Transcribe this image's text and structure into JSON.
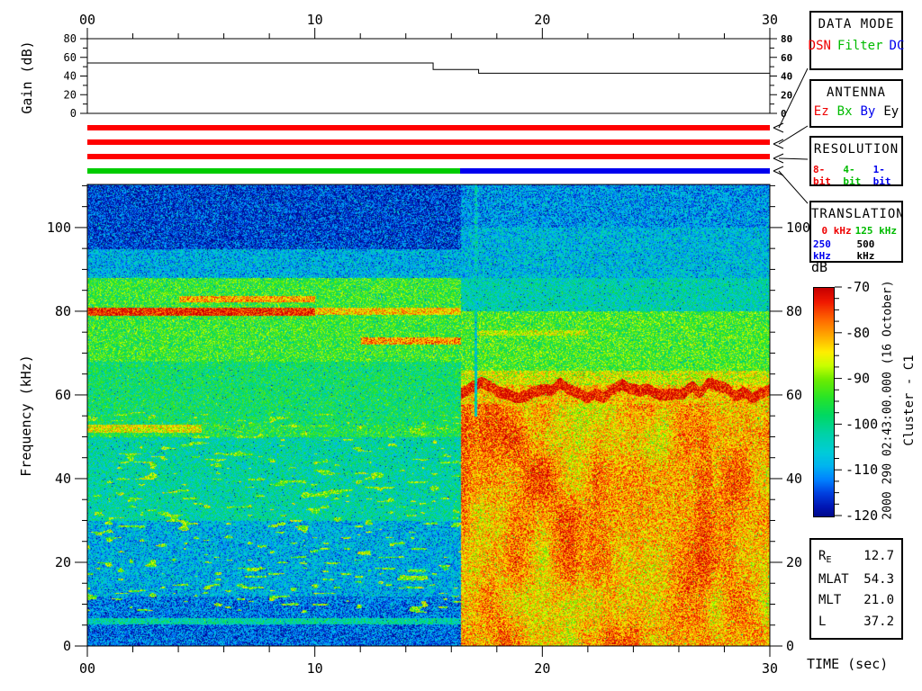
{
  "axis_labels": {
    "time": "TIME (sec)",
    "frequency": "Frequency (kHz)",
    "gain": "Gain (dB)",
    "colorbar": "dB"
  },
  "side_annotations": {
    "datetime_vertical": "2000 290 02:43:00.000 (16 October)",
    "spacecraft_vertical": "Cluster - C1"
  },
  "panels": {
    "data_mode": {
      "title": "DATA MODE",
      "options": [
        {
          "label": "DSN",
          "color": "#ee0000"
        },
        {
          "label": "Filter",
          "color": "#00bb00"
        },
        {
          "label": "DC",
          "color": "#0000ee"
        }
      ]
    },
    "antenna": {
      "title": "ANTENNA",
      "options": [
        {
          "label": "Ez",
          "color": "#ee0000"
        },
        {
          "label": "Bx",
          "color": "#00bb00"
        },
        {
          "label": "By",
          "color": "#0000ee"
        },
        {
          "label": "Ey",
          "color": "#000000"
        }
      ]
    },
    "resolution": {
      "title": "RESOLUTION",
      "options": [
        {
          "label": "8-bit",
          "color": "#ee0000"
        },
        {
          "label": "4-bit",
          "color": "#00bb00"
        },
        {
          "label": "1-bit",
          "color": "#0000ee"
        }
      ]
    },
    "translation": {
      "title": "TRANSLATION",
      "options_row1": [
        {
          "label": "0 kHz",
          "color": "#ee0000"
        },
        {
          "label": "125 kHz",
          "color": "#00bb00"
        }
      ],
      "options_row2": [
        {
          "label": "250 kHz",
          "color": "#0000ee"
        },
        {
          "label": "500 kHz",
          "color": "#000000"
        }
      ]
    }
  },
  "ephemeris": {
    "rows": [
      {
        "label": "R",
        "sub": "E",
        "value": "12.7"
      },
      {
        "label": "MLAT",
        "sub": "",
        "value": "54.3"
      },
      {
        "label": "MLT",
        "sub": "",
        "value": "21.0"
      },
      {
        "label": "L",
        "sub": "",
        "value": "37.2"
      }
    ]
  },
  "chart_data": [
    {
      "id": "gain_plot",
      "type": "line",
      "ylabel": "Gain (dB)",
      "xlim": [
        0,
        30
      ],
      "ylim": [
        0,
        80
      ],
      "yticks": [
        0,
        20,
        40,
        60,
        80
      ],
      "y_minor_step": 10,
      "xticks": [
        0,
        10,
        20,
        30
      ],
      "xtick_labels": [
        "00",
        "10",
        "20",
        "30"
      ],
      "x_minor_step": 2,
      "series": [
        {
          "name": "receiver-gain",
          "points": [
            [
              0,
              54
            ],
            [
              15.2,
              54
            ],
            [
              15.2,
              47
            ],
            [
              17.2,
              47
            ],
            [
              17.2,
              43
            ],
            [
              30,
              43
            ]
          ]
        }
      ]
    },
    {
      "id": "status_bars",
      "type": "timeline",
      "xlim": [
        0,
        30
      ],
      "rows": [
        {
          "name": "data-mode-bar",
          "segments": [
            {
              "from": 0,
              "to": 30,
              "value": "DSN",
              "color": "#ff0000"
            }
          ]
        },
        {
          "name": "antenna-bar",
          "segments": [
            {
              "from": 0,
              "to": 30,
              "value": "Ez",
              "color": "#ff0000"
            }
          ]
        },
        {
          "name": "resolution-bar",
          "segments": [
            {
              "from": 0,
              "to": 30,
              "value": "8-bit",
              "color": "#ff0000"
            }
          ]
        },
        {
          "name": "translation-bar",
          "segments": [
            {
              "from": 0,
              "to": 16.4,
              "value": "125 kHz",
              "color": "#00cc00"
            },
            {
              "from": 16.4,
              "to": 30,
              "value": "250 kHz",
              "color": "#0000ee"
            }
          ]
        }
      ]
    },
    {
      "id": "spectrogram",
      "type": "heatmap",
      "xlabel": "TIME (sec)",
      "ylabel": "Frequency (kHz)",
      "xlim": [
        0,
        30
      ],
      "ylim": [
        0,
        110.3
      ],
      "xticks": [
        0,
        10,
        20,
        30
      ],
      "xtick_labels": [
        "00",
        "10",
        "20",
        "30"
      ],
      "x_minor_step": 2,
      "yticks": [
        0,
        20,
        40,
        60,
        80,
        100
      ],
      "y_minor_step": 5,
      "colorbar": {
        "label": "dB",
        "min": -120,
        "max": -70,
        "ticks": [
          -70,
          -80,
          -90,
          -100,
          -110,
          -120
        ],
        "minor_step": 2.5,
        "stops": [
          [
            -70,
            "#c80000"
          ],
          [
            -73,
            "#f01800"
          ],
          [
            -77,
            "#ff6a00"
          ],
          [
            -81,
            "#ffb400"
          ],
          [
            -84,
            "#ffee00"
          ],
          [
            -87,
            "#c8ff00"
          ],
          [
            -90,
            "#6eec00"
          ],
          [
            -94,
            "#28e428"
          ],
          [
            -98,
            "#00d864"
          ],
          [
            -102,
            "#00d2a8"
          ],
          [
            -106,
            "#00ccd8"
          ],
          [
            -109,
            "#00b4f0"
          ],
          [
            -112,
            "#0082ff"
          ],
          [
            -115,
            "#0040e0"
          ],
          [
            -118,
            "#0016b4"
          ],
          [
            -120,
            "#000a8c"
          ]
        ]
      },
      "segments": [
        {
          "name": "mode-125khz",
          "t": [
            0,
            16.4
          ],
          "bands": [
            {
              "f": [
                95,
                110.3
              ],
              "level_db": -116
            },
            {
              "f": [
                88,
                95
              ],
              "level_db": -108
            },
            {
              "f": [
                68,
                88
              ],
              "level_db": -94
            },
            {
              "f": [
                53,
                68
              ],
              "level_db": -98
            },
            {
              "f": [
                50,
                53
              ],
              "level_db": -96
            },
            {
              "f": [
                30,
                50
              ],
              "level_db": -102
            },
            {
              "f": [
                12,
                30
              ],
              "level_db": -108
            },
            {
              "f": [
                6.5,
                12
              ],
              "level_db": -112
            },
            {
              "f": [
                0,
                6.5
              ],
              "level_db": -113
            }
          ],
          "lines": [
            {
              "f": 80,
              "t": [
                0,
                10
              ],
              "level_db": -73,
              "width_khz": 1.6
            },
            {
              "f": 80,
              "t": [
                10,
                16.4
              ],
              "level_db": -82,
              "width_khz": 1.2
            },
            {
              "f": 83,
              "t": [
                4,
                10
              ],
              "level_db": -80,
              "width_khz": 1.0
            },
            {
              "f": 73,
              "t": [
                12,
                16.4
              ],
              "level_db": -79,
              "width_khz": 1.2
            },
            {
              "f": 52,
              "t": [
                0,
                5
              ],
              "level_db": -85,
              "width_khz": 1.4
            },
            {
              "f": 6,
              "t": [
                0,
                16.4
              ],
              "level_db": -102,
              "width_khz": 0.9
            }
          ]
        },
        {
          "name": "mode-250khz",
          "t": [
            16.4,
            30
          ],
          "bands": [
            {
              "f": [
                100,
                110.3
              ],
              "level_db": -110
            },
            {
              "f": [
                88,
                100
              ],
              "level_db": -107
            },
            {
              "f": [
                80,
                88
              ],
              "level_db": -103
            },
            {
              "f": [
                66,
                80
              ],
              "level_db": -93
            },
            {
              "f": [
                62.5,
                66
              ],
              "level_db": -86
            },
            {
              "f": [
                58,
                62.5
              ],
              "level_db": -82
            },
            {
              "f": [
                0,
                58
              ],
              "level_db": -80
            }
          ],
          "lines": [
            {
              "f": 61,
              "t": [
                16.4,
                30
              ],
              "level_db": -72,
              "width_khz": 2.2,
              "jagged": true
            },
            {
              "f": 75,
              "t": [
                17,
                22
              ],
              "level_db": -87,
              "width_khz": 0.8
            }
          ]
        }
      ]
    }
  ]
}
